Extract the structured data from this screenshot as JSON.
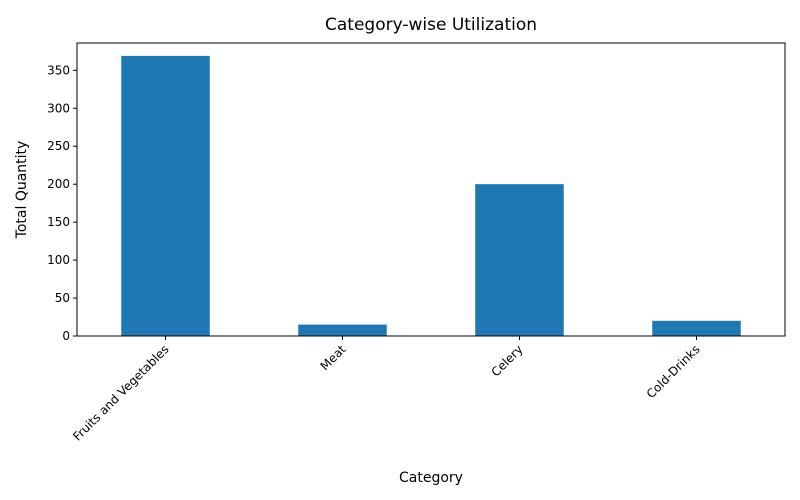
{
  "chart_data": {
    "type": "bar",
    "title": "Category-wise Utilization",
    "xlabel": "Category",
    "ylabel": "Total Quantity",
    "categories": [
      "Fruits and Vegetables",
      "Meat",
      "Celery",
      "Cold-Drinks"
    ],
    "values": [
      369,
      15,
      200,
      20
    ],
    "ylim": [
      0,
      386
    ],
    "yticks": [
      0,
      50,
      100,
      150,
      200,
      250,
      300,
      350
    ],
    "xtick_rotation": 45,
    "bar_color": "#1f77b4",
    "grid": false,
    "legend": "none"
  }
}
